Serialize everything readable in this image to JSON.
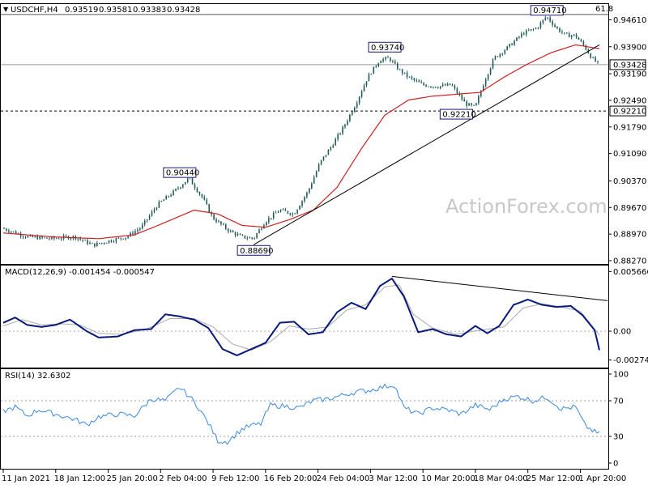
{
  "chart_data": [
    {
      "panel": "price",
      "type": "candlestick",
      "symbol": "USDCHF,H4",
      "ohlc_readout": [
        "0.93519",
        "0.93581",
        "0.93383",
        "0.93428"
      ],
      "ylim": [
        0.8827,
        0.9496
      ],
      "yticks": [
        "0.94610",
        "0.93900",
        "0.93190",
        "0.92490",
        "0.91790",
        "0.91090",
        "0.90370",
        "0.89670",
        "0.88970",
        "0.88270"
      ],
      "last_price": "0.93428",
      "level_line": {
        "label": "0.92210",
        "value": 0.9221
      },
      "fib_label": "61.8",
      "fib_value": 0.9475,
      "swing_labels": [
        {
          "label": "0.94710",
          "bar": 228,
          "value": 0.9471
        },
        {
          "label": "0.93740",
          "bar": 160,
          "value": 0.9374
        },
        {
          "label": "0.92210",
          "bar": 190,
          "value": 0.9221
        },
        {
          "label": "0.90440",
          "bar": 74,
          "value": 0.9044
        },
        {
          "label": "0.88690",
          "bar": 105,
          "value": 0.8869
        }
      ],
      "trendline": {
        "from": {
          "bar": 105,
          "value": 0.8869
        },
        "to": {
          "bar": 250,
          "value": 0.9395
        }
      },
      "bar_count": 250,
      "close_path": [
        [
          0,
          0.8912
        ],
        [
          10,
          0.889
        ],
        [
          20,
          0.8885
        ],
        [
          30,
          0.889
        ],
        [
          38,
          0.8868
        ],
        [
          45,
          0.888
        ],
        [
          52,
          0.889
        ],
        [
          58,
          0.8915
        ],
        [
          65,
          0.8975
        ],
        [
          72,
          0.901
        ],
        [
          78,
          0.9044
        ],
        [
          84,
          0.899
        ],
        [
          88,
          0.894
        ],
        [
          95,
          0.8905
        ],
        [
          100,
          0.889
        ],
        [
          105,
          0.8885
        ],
        [
          110,
          0.893
        ],
        [
          116,
          0.896
        ],
        [
          122,
          0.895
        ],
        [
          128,
          0.901
        ],
        [
          133,
          0.9085
        ],
        [
          138,
          0.913
        ],
        [
          143,
          0.918
        ],
        [
          148,
          0.924
        ],
        [
          153,
          0.931
        ],
        [
          158,
          0.9355
        ],
        [
          162,
          0.936
        ],
        [
          166,
          0.933
        ],
        [
          170,
          0.931
        ],
        [
          176,
          0.929
        ],
        [
          182,
          0.9285
        ],
        [
          188,
          0.929
        ],
        [
          194,
          0.924
        ],
        [
          198,
          0.923
        ],
        [
          202,
          0.93
        ],
        [
          206,
          0.936
        ],
        [
          212,
          0.939
        ],
        [
          218,
          0.9425
        ],
        [
          224,
          0.944
        ],
        [
          228,
          0.947
        ],
        [
          232,
          0.944
        ],
        [
          236,
          0.942
        ],
        [
          240,
          0.942
        ],
        [
          244,
          0.939
        ],
        [
          247,
          0.936
        ],
        [
          250,
          0.9343
        ]
      ],
      "ma_path": [
        [
          0,
          0.89
        ],
        [
          20,
          0.889
        ],
        [
          40,
          0.8885
        ],
        [
          55,
          0.8895
        ],
        [
          65,
          0.892
        ],
        [
          80,
          0.896
        ],
        [
          90,
          0.895
        ],
        [
          100,
          0.892
        ],
        [
          110,
          0.8915
        ],
        [
          120,
          0.8935
        ],
        [
          130,
          0.896
        ],
        [
          140,
          0.902
        ],
        [
          150,
          0.912
        ],
        [
          160,
          0.921
        ],
        [
          170,
          0.925
        ],
        [
          180,
          0.926
        ],
        [
          190,
          0.9265
        ],
        [
          200,
          0.927
        ],
        [
          210,
          0.931
        ],
        [
          220,
          0.9345
        ],
        [
          230,
          0.9375
        ],
        [
          240,
          0.9395
        ],
        [
          250,
          0.9385
        ]
      ],
      "colors": {
        "candle": "#235a5a",
        "ma": "#cc2222",
        "trend": "#000000"
      }
    },
    {
      "panel": "macd",
      "type": "line",
      "title": "MACD(12,26,9) -0.001454 -0.000547",
      "ylim": [
        -0.0033,
        0.006
      ],
      "yticks": [
        "0.005666",
        "0.00",
        "-0.002741"
      ],
      "macd_path": [
        [
          0,
          0.0008
        ],
        [
          5,
          0.0013
        ],
        [
          10,
          0.0006
        ],
        [
          16,
          0.0004
        ],
        [
          22,
          0.0006
        ],
        [
          28,
          0.0011
        ],
        [
          35,
          0.0
        ],
        [
          40,
          -0.0006
        ],
        [
          48,
          -0.0005
        ],
        [
          55,
          0.0001
        ],
        [
          62,
          0.0002
        ],
        [
          68,
          0.0016
        ],
        [
          74,
          0.0014
        ],
        [
          80,
          0.0011
        ],
        [
          86,
          0.0003
        ],
        [
          92,
          -0.0017
        ],
        [
          98,
          -0.0023
        ],
        [
          104,
          -0.0017
        ],
        [
          110,
          -0.0011
        ],
        [
          116,
          0.0008
        ],
        [
          122,
          0.0009
        ],
        [
          128,
          -0.0003
        ],
        [
          134,
          -0.0001
        ],
        [
          140,
          0.0018
        ],
        [
          146,
          0.0027
        ],
        [
          152,
          0.0021
        ],
        [
          158,
          0.0043
        ],
        [
          163,
          0.005
        ],
        [
          168,
          0.0033
        ],
        [
          174,
          -0.0001
        ],
        [
          180,
          0.0002
        ],
        [
          186,
          -0.0003
        ],
        [
          192,
          -0.0005
        ],
        [
          198,
          0.0005
        ],
        [
          203,
          -0.0002
        ],
        [
          208,
          0.0005
        ],
        [
          214,
          0.0025
        ],
        [
          220,
          0.003
        ],
        [
          226,
          0.0025
        ],
        [
          232,
          0.0023
        ],
        [
          238,
          0.0024
        ],
        [
          243,
          0.0015
        ],
        [
          248,
          0.0001
        ],
        [
          250,
          -0.0018
        ]
      ],
      "signal_path": [
        [
          0,
          0.0005
        ],
        [
          8,
          0.0011
        ],
        [
          16,
          0.0006
        ],
        [
          24,
          0.0007
        ],
        [
          32,
          0.0006
        ],
        [
          40,
          -0.0002
        ],
        [
          50,
          -0.0003
        ],
        [
          60,
          0.0002
        ],
        [
          70,
          0.0012
        ],
        [
          80,
          0.0012
        ],
        [
          88,
          0.0004
        ],
        [
          96,
          -0.0012
        ],
        [
          104,
          -0.0018
        ],
        [
          112,
          -0.001
        ],
        [
          120,
          0.0005
        ],
        [
          128,
          0.0002
        ],
        [
          136,
          0.0004
        ],
        [
          144,
          0.002
        ],
        [
          152,
          0.0025
        ],
        [
          160,
          0.0042
        ],
        [
          166,
          0.0044
        ],
        [
          172,
          0.0016
        ],
        [
          180,
          0.0003
        ],
        [
          190,
          -0.0003
        ],
        [
          200,
          0.0001
        ],
        [
          210,
          0.0004
        ],
        [
          218,
          0.0022
        ],
        [
          226,
          0.0026
        ],
        [
          234,
          0.0023
        ],
        [
          242,
          0.0019
        ],
        [
          250,
          -0.0004
        ]
      ],
      "trendline": {
        "from": {
          "bar": 163,
          "value": 0.0052
        },
        "to": {
          "bar": 250,
          "value": 0.0029
        }
      },
      "colors": {
        "macd": "#0a1a7a",
        "signal": "#aaaaaa"
      }
    },
    {
      "panel": "rsi",
      "type": "line",
      "title": "RSI(14) 32.6302",
      "ylim": [
        0,
        100
      ],
      "yticks": [
        "100",
        "70",
        "30",
        "0"
      ],
      "levels": [
        70,
        30
      ],
      "rsi_path": [
        [
          0,
          58
        ],
        [
          5,
          63
        ],
        [
          10,
          53
        ],
        [
          15,
          60
        ],
        [
          22,
          55
        ],
        [
          30,
          49
        ],
        [
          35,
          43
        ],
        [
          40,
          52
        ],
        [
          48,
          55
        ],
        [
          55,
          53
        ],
        [
          62,
          72
        ],
        [
          68,
          70
        ],
        [
          74,
          85
        ],
        [
          78,
          75
        ],
        [
          82,
          62
        ],
        [
          86,
          45
        ],
        [
          90,
          25
        ],
        [
          94,
          24
        ],
        [
          100,
          38
        ],
        [
          104,
          42
        ],
        [
          108,
          44
        ],
        [
          112,
          65
        ],
        [
          118,
          64
        ],
        [
          124,
          62
        ],
        [
          130,
          70
        ],
        [
          136,
          72
        ],
        [
          142,
          76
        ],
        [
          148,
          80
        ],
        [
          154,
          82
        ],
        [
          160,
          86
        ],
        [
          164,
          88
        ],
        [
          168,
          62
        ],
        [
          174,
          55
        ],
        [
          180,
          62
        ],
        [
          186,
          60
        ],
        [
          192,
          55
        ],
        [
          198,
          65
        ],
        [
          204,
          60
        ],
        [
          210,
          72
        ],
        [
          216,
          75
        ],
        [
          222,
          70
        ],
        [
          228,
          74
        ],
        [
          234,
          61
        ],
        [
          240,
          63
        ],
        [
          244,
          42
        ],
        [
          248,
          35
        ],
        [
          250,
          32.6
        ]
      ],
      "colors": {
        "rsi": "#3a8adc"
      }
    }
  ],
  "x_axis": {
    "labels": [
      "11 Jan 2021",
      "18 Jan 12:00",
      "25 Jan 20:00",
      "2 Feb 04:00",
      "9 Feb 12:00",
      "16 Feb 20:00",
      "24 Feb 04:00",
      "3 Mar 12:00",
      "10 Mar 20:00",
      "18 Mar 04:00",
      "25 Mar 12:00",
      "1 Apr 20:00"
    ],
    "label_bars": [
      0,
      22,
      44,
      66,
      88,
      110,
      132,
      154,
      176,
      198,
      220,
      242
    ]
  },
  "watermark": "ActionForex.com"
}
